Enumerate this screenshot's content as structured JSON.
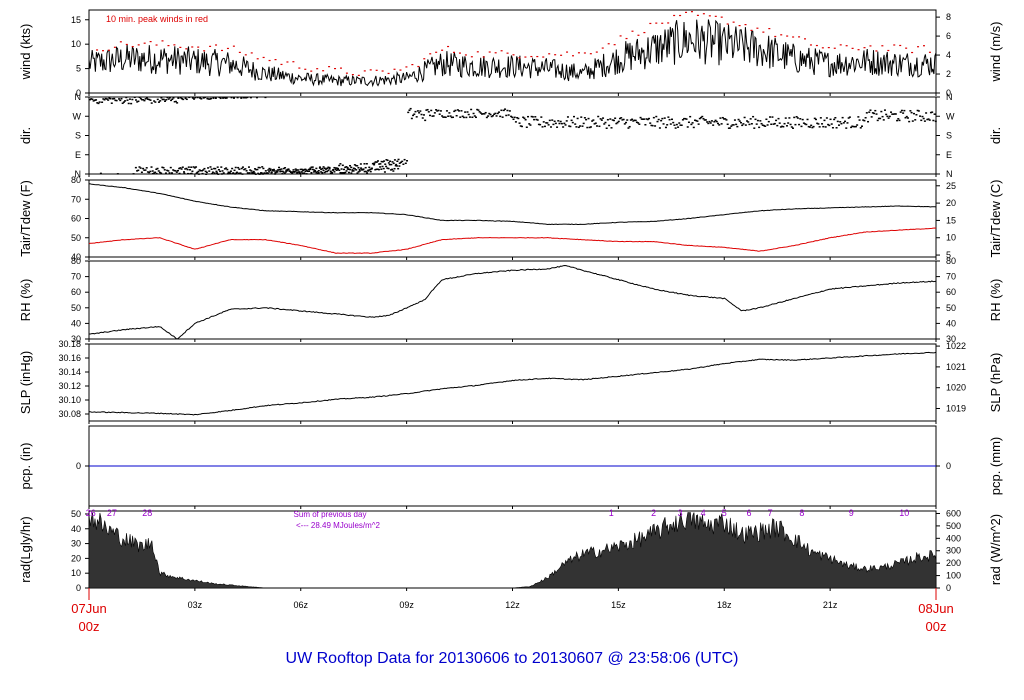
{
  "title": "UW Rooftop Data for 20130606  to  20130607 @ 23:58:06  (UTC)",
  "colors": {
    "main": "#000000",
    "red": "#dd0000",
    "blue": "#0000cc",
    "purple": "#9900cc",
    "axis": "#000000"
  },
  "x_axis": {
    "ticks": [
      "03z",
      "06z",
      "09z",
      "12z",
      "15z",
      "18z",
      "21z"
    ],
    "start": {
      "date": "07Jun",
      "time": "00z"
    },
    "end": {
      "date": "08Jun",
      "time": "00z"
    }
  },
  "chart_data": [
    {
      "id": "wind",
      "type": "line",
      "ylabel": "wind (kts)",
      "ylabel_right": "wind (m/s)",
      "yticks": [
        0,
        5,
        10,
        15
      ],
      "yticks_right": [
        0,
        2,
        4,
        6,
        8
      ],
      "ylim": [
        0,
        17
      ],
      "annotation": "10 min. peak winds in red",
      "series": [
        {
          "color": "#000000",
          "x": [
            0,
            1,
            2,
            3,
            4,
            5,
            6,
            7,
            8,
            9,
            10,
            11,
            12,
            13,
            14,
            15,
            16,
            17,
            18,
            19,
            20,
            21,
            22,
            23,
            24
          ],
          "values": [
            6,
            7,
            7,
            6.5,
            6,
            4,
            3,
            2.5,
            2.5,
            3,
            6,
            5.5,
            5.5,
            5,
            4,
            7,
            9,
            11,
            10,
            9,
            7,
            6,
            6.5,
            6,
            6
          ]
        },
        {
          "color": "#dd0000",
          "x": [
            0,
            1,
            2,
            3,
            4,
            5,
            6,
            7,
            8,
            9,
            10,
            11,
            12,
            13,
            14,
            15,
            16,
            17,
            18,
            19,
            20,
            21,
            22,
            23,
            24
          ],
          "values": [
            9,
            10,
            10,
            9.5,
            9,
            7,
            5.5,
            4.5,
            4,
            5,
            9,
            8,
            8,
            8,
            8,
            11,
            14,
            16,
            15,
            13,
            11,
            9,
            9.5,
            9,
            9
          ]
        }
      ]
    },
    {
      "id": "dir",
      "type": "scatter",
      "ylabel": "dir.",
      "ylabel_right": "dir.",
      "yticks": [
        "N",
        "E",
        "S",
        "W",
        "N"
      ],
      "ylim": [
        0,
        360
      ],
      "series": [
        {
          "color": "#000000"
        }
      ]
    },
    {
      "id": "temp",
      "type": "line",
      "ylabel": "Tair/Tdew (F)",
      "ylabel_right": "Tair/Tdew (C)",
      "yticks": [
        40,
        50,
        60,
        70,
        80
      ],
      "yticks_right": [
        5,
        10,
        15,
        20,
        25
      ],
      "ylim": [
        40,
        80
      ],
      "series": [
        {
          "color": "#000000",
          "x": [
            0,
            1,
            2,
            3,
            4,
            5,
            6,
            7,
            8,
            9,
            10,
            11,
            12,
            13,
            14,
            15,
            16,
            17,
            18,
            19,
            20,
            21,
            22,
            23,
            24
          ],
          "values": [
            78,
            76,
            73,
            69,
            66,
            64,
            63.5,
            63,
            63,
            62,
            59,
            59,
            58.5,
            57,
            57,
            58,
            58.5,
            60,
            62,
            64,
            65,
            65.5,
            66,
            66.5,
            66
          ]
        },
        {
          "color": "#dd0000",
          "x": [
            0,
            1,
            2,
            3,
            4,
            5,
            6,
            7,
            8,
            9,
            10,
            11,
            12,
            13,
            14,
            15,
            16,
            17,
            18,
            19,
            20,
            21,
            22,
            23,
            24
          ],
          "values": [
            47,
            49,
            50,
            44,
            49,
            49,
            46,
            42,
            42,
            44,
            49,
            50,
            50,
            50,
            49,
            48,
            48,
            46,
            45,
            43,
            46,
            50,
            53,
            54,
            55
          ]
        }
      ]
    },
    {
      "id": "rh",
      "type": "line",
      "ylabel": "RH (%)",
      "ylabel_right": "RH (%)",
      "yticks": [
        30,
        40,
        50,
        60,
        70,
        80
      ],
      "yticks_right": [
        30,
        40,
        50,
        60,
        70,
        80
      ],
      "ylim": [
        30,
        80
      ],
      "series": [
        {
          "color": "#000000",
          "x": [
            0,
            1,
            2,
            2.5,
            3,
            4,
            5,
            6,
            7,
            8,
            8.5,
            9,
            9.5,
            10,
            11,
            12,
            13,
            13.5,
            14,
            15,
            16,
            17,
            18,
            18.5,
            19,
            20,
            21,
            22,
            23,
            24
          ],
          "values": [
            33,
            36,
            38,
            30,
            40,
            49,
            50,
            48,
            46,
            44,
            45,
            50,
            55,
            68,
            72,
            74,
            75,
            77,
            74,
            68,
            62,
            58,
            56,
            48,
            50,
            56,
            62,
            64,
            66,
            67
          ]
        }
      ]
    },
    {
      "id": "slp",
      "type": "line",
      "ylabel": "SLP (inHg)",
      "ylabel_right": "SLP (hPa)",
      "yticks": [
        30.08,
        30.1,
        30.12,
        30.14,
        30.16,
        30.18
      ],
      "yticks_right": [
        1019,
        1020,
        1021,
        1022
      ],
      "ylim": [
        30.07,
        30.18
      ],
      "series": [
        {
          "color": "#000000",
          "x": [
            0,
            1,
            2,
            3,
            4,
            5,
            6,
            7,
            8,
            9,
            10,
            11,
            12,
            13,
            14,
            15,
            16,
            17,
            18,
            19,
            20,
            21,
            22,
            23,
            24
          ],
          "values": [
            30.083,
            30.082,
            30.081,
            30.079,
            30.085,
            30.092,
            30.096,
            30.101,
            30.104,
            30.109,
            30.116,
            30.121,
            30.128,
            30.131,
            30.129,
            30.134,
            30.139,
            30.144,
            30.152,
            30.158,
            30.157,
            30.16,
            30.163,
            30.166,
            30.168
          ]
        }
      ]
    },
    {
      "id": "pcp",
      "type": "line",
      "ylabel": "pcp. (in)",
      "ylabel_right": "pcp. (mm)",
      "yticks": [
        0
      ],
      "yticks_right": [
        0
      ],
      "ylim": [
        -1,
        1
      ],
      "series": [
        {
          "color": "#0000cc",
          "x": [
            0,
            24
          ],
          "values": [
            0,
            0
          ]
        }
      ]
    },
    {
      "id": "rad",
      "type": "area",
      "ylabel": "rad(Lgly/hr)",
      "ylabel_right": "rad (W/m^2)",
      "yticks": [
        0,
        10,
        20,
        30,
        40,
        50
      ],
      "yticks_right": [
        0,
        100,
        200,
        300,
        400,
        500,
        600
      ],
      "ylim": [
        0,
        52
      ],
      "annotation_lines": [
        "Sum of previous day",
        "<--- 28.49 MJoules/m^2"
      ],
      "day_labels": [
        {
          "x": 0.05,
          "label": "26"
        },
        {
          "x": 0.65,
          "label": "27"
        },
        {
          "x": 1.65,
          "label": "28"
        },
        {
          "x": 14.8,
          "label": "1"
        },
        {
          "x": 16.0,
          "label": "2"
        },
        {
          "x": 16.75,
          "label": "3"
        },
        {
          "x": 17.4,
          "label": "4"
        },
        {
          "x": 18.0,
          "label": "5"
        },
        {
          "x": 18.7,
          "label": "6"
        },
        {
          "x": 19.3,
          "label": "7"
        },
        {
          "x": 20.2,
          "label": "8"
        },
        {
          "x": 21.6,
          "label": "9"
        },
        {
          "x": 23.1,
          "label": "10"
        }
      ],
      "series": [
        {
          "color": "#000000",
          "x": [
            0,
            0.5,
            1,
            1.5,
            1.8,
            2,
            2.5,
            3,
            3.5,
            4,
            4.5,
            5,
            6,
            7,
            8,
            9,
            10,
            11,
            12,
            12.5,
            13,
            13.5,
            14,
            14.5,
            15,
            15.5,
            16,
            16.5,
            17,
            17.5,
            18,
            18.5,
            19,
            19.5,
            20,
            20.5,
            21,
            21.5,
            22,
            22.5,
            23,
            23.5,
            24
          ],
          "values": [
            50,
            40,
            33,
            28,
            31,
            10,
            7,
            5,
            3,
            2,
            1,
            0,
            0,
            0,
            0,
            0,
            0,
            0,
            0,
            1,
            7,
            17,
            23,
            25,
            28,
            32,
            37,
            43,
            48,
            42,
            45,
            36,
            38,
            41,
            33,
            24,
            20,
            15,
            13,
            14,
            17,
            21,
            22
          ]
        }
      ]
    }
  ]
}
